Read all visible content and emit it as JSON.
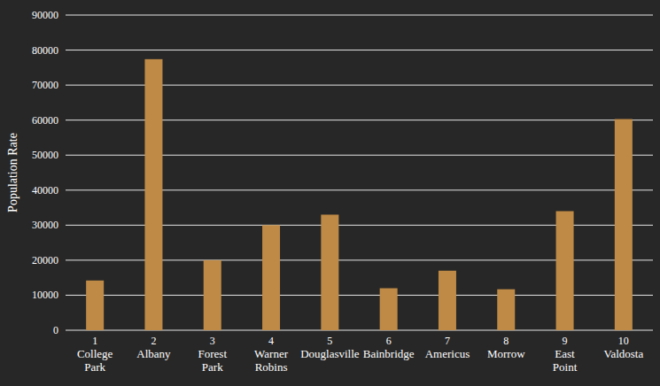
{
  "chart_data": {
    "type": "bar",
    "y_label": "Population Rate",
    "categories": [
      "1\nCollege\nPark",
      "2\nAlbany",
      "3\nForest\nPark",
      "4\nWarner\nRobins",
      "5\nDouglasville",
      "6\nBainbridge",
      "7\nAmericus",
      "8\nMorrow",
      "9\nEast\nPoint",
      "10\nValdosta"
    ],
    "values": [
      14200,
      77400,
      20000,
      30000,
      33000,
      12000,
      17000,
      11700,
      34000,
      60300
    ],
    "color": "#bf8a45",
    "ylim": [
      0,
      90000
    ],
    "yticks": [
      0,
      10000,
      20000,
      30000,
      40000,
      50000,
      60000,
      70000,
      80000,
      90000
    ],
    "grid": true
  }
}
